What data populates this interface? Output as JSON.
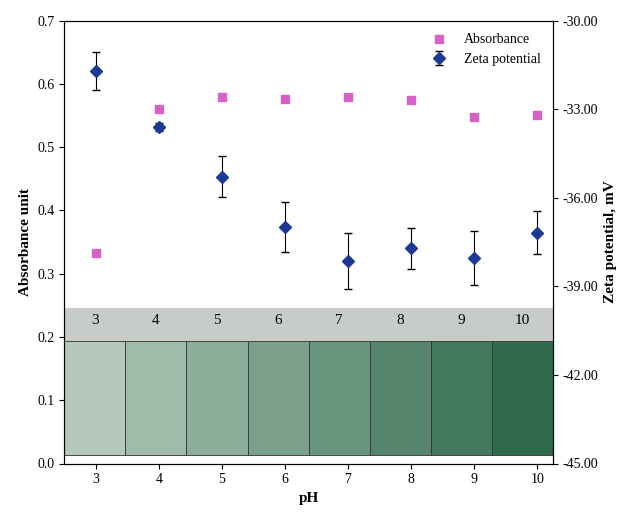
{
  "chart_data": {
    "type": "scatter",
    "x_label": "pH",
    "y_label": "Absorbance unit",
    "y2_label": "Zeta potential, mV",
    "x": [
      3,
      4,
      5,
      6,
      7,
      8,
      9,
      10
    ],
    "series": [
      {
        "name": "Absorbance",
        "color": "#d662c8",
        "marker": "square",
        "values": [
          0.333,
          0.56,
          0.58,
          0.576,
          0.58,
          0.574,
          0.548,
          0.551
        ]
      },
      {
        "name": "Zeta potential",
        "color": "#1c3a94",
        "marker": "diamond",
        "axis": "y2",
        "values": [
          -31.71,
          -33.6,
          -35.29,
          -37.0,
          -38.14,
          -37.71,
          -38.04,
          -37.18
        ],
        "errors": [
          0.63,
          0.13,
          0.7,
          0.84,
          0.96,
          0.7,
          0.93,
          0.73
        ]
      }
    ],
    "xlim": [
      2.5,
      10.25
    ],
    "xticks": [
      3,
      4,
      5,
      6,
      7,
      8,
      9,
      10
    ],
    "ylim": [
      0.0,
      0.7
    ],
    "yticks": [
      {
        "value": 0.0,
        "label": "0.0"
      },
      0.1,
      0.2,
      0.3,
      0.4,
      0.5,
      0.6,
      0.7
    ],
    "y2lim": [
      -45,
      -30
    ],
    "y2ticks": [
      {
        "value": -45,
        "label": "-45.00"
      },
      {
        "value": -42,
        "label": "-42.00"
      },
      {
        "value": -39,
        "label": "-39.00"
      },
      {
        "value": -36,
        "label": "-36.00"
      },
      {
        "value": -33,
        "label": "-33.00"
      },
      {
        "value": -30,
        "label": "-30.00"
      }
    ],
    "annotations": [
      "3",
      "4",
      "5",
      "6",
      "7",
      "8",
      "9",
      "10"
    ],
    "legend": "upper right",
    "grid": false
  }
}
